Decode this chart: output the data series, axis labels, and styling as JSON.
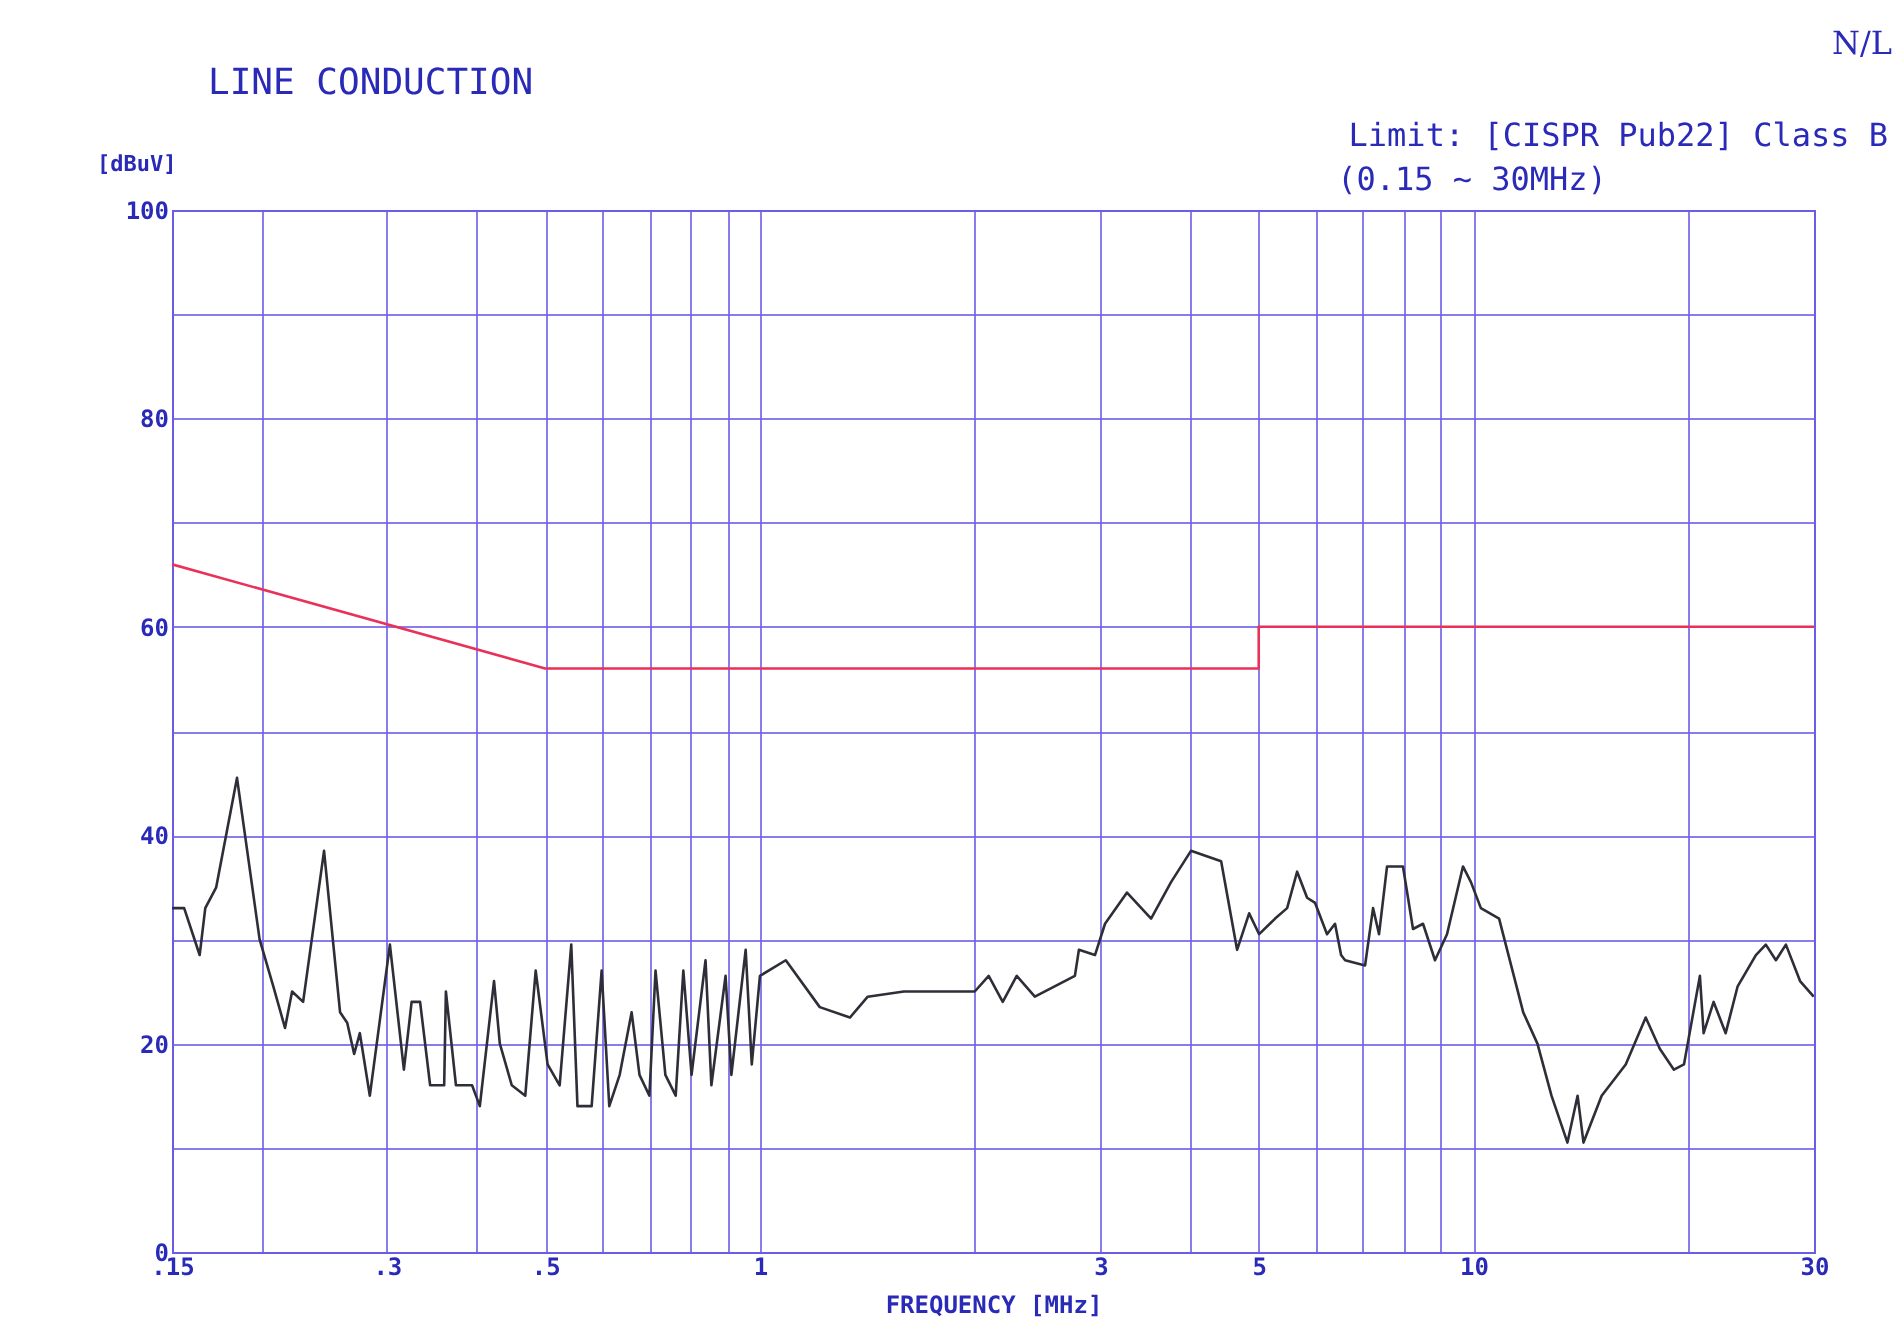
{
  "chart_data": {
    "type": "line",
    "title": "LINE CONDUCTION",
    "xlabel": "FREQUENCY [MHz]",
    "ylabel": "[dBuV]",
    "annotations": [
      "N/L",
      "Limit: [CISPR Pub22] Class B",
      "(0.15 ~ 30MHz)"
    ],
    "log": "x",
    "grid": true,
    "legend": false,
    "xlim": [
      0.15,
      30
    ],
    "ylim": [
      0,
      100
    ],
    "xticks": [
      {
        "value": 0.15,
        "label": ".15"
      },
      {
        "value": 0.2,
        "label": null
      },
      {
        "value": 0.3,
        "label": ".3"
      },
      {
        "value": 0.4,
        "label": null
      },
      {
        "value": 0.5,
        "label": ".5"
      },
      {
        "value": 0.6,
        "label": null
      },
      {
        "value": 0.7,
        "label": null
      },
      {
        "value": 0.8,
        "label": null
      },
      {
        "value": 0.9,
        "label": null
      },
      1,
      {
        "value": 2,
        "label": null
      },
      3,
      {
        "value": 4,
        "label": null
      },
      5,
      {
        "value": 6,
        "label": null
      },
      {
        "value": 7,
        "label": null
      },
      {
        "value": 8,
        "label": null
      },
      {
        "value": 9,
        "label": null
      },
      10,
      {
        "value": 20,
        "label": null
      },
      30
    ],
    "yticks": [
      0,
      {
        "value": 10,
        "label": null
      },
      20,
      {
        "value": 30,
        "label": null
      },
      40,
      {
        "value": 50,
        "label": null
      },
      60,
      {
        "value": 70,
        "label": null
      },
      80,
      {
        "value": 90,
        "label": null
      },
      100
    ],
    "series": [
      {
        "color": "#e8325a",
        "x": [
          0.15,
          0.5,
          5,
          5,
          30
        ],
        "values": [
          66,
          56,
          56,
          60,
          60
        ]
      },
      {
        "color": "#2e2e38",
        "x": [
          0.15,
          0.156,
          0.164,
          0.167,
          0.173,
          0.185,
          0.199,
          0.208,
          0.216,
          0.221,
          0.229,
          0.245,
          0.258,
          0.264,
          0.27,
          0.275,
          0.284,
          0.303,
          0.317,
          0.325,
          0.334,
          0.345,
          0.361,
          0.363,
          0.375,
          0.395,
          0.405,
          0.424,
          0.432,
          0.449,
          0.469,
          0.485,
          0.504,
          0.524,
          0.544,
          0.555,
          0.581,
          0.6,
          0.615,
          0.636,
          0.661,
          0.678,
          0.7,
          0.714,
          0.737,
          0.762,
          0.781,
          0.802,
          0.839,
          0.855,
          0.895,
          0.912,
          0.955,
          0.974,
          1.0,
          1.087,
          1.213,
          1.337,
          1.416,
          1.591,
          2.0,
          2.092,
          2.189,
          2.29,
          2.428,
          2.763,
          2.799,
          2.948,
          3.045,
          3.269,
          3.533,
          3.768,
          4.018,
          4.429,
          4.663,
          4.848,
          5.007,
          5.272,
          5.48,
          5.66,
          5.845,
          5.998,
          6.233,
          6.396,
          6.522,
          6.607,
          7.047,
          7.231,
          7.372,
          7.565,
          7.964,
          8.226,
          8.496,
          8.831,
          9.18,
          9.665,
          9.917,
          10.24,
          10.86,
          11.74,
          12.29,
          12.86,
          13.54,
          13.99,
          14.26,
          15.12,
          16.34,
          17.43,
          18.24,
          19.09,
          19.72,
          20.76,
          21.01,
          21.7,
          22.56,
          23.45,
          24.87,
          25.68,
          26.53,
          27.4,
          28.68,
          29.97
        ],
        "values": [
          33,
          33,
          28.5,
          33,
          35,
          45.5,
          30,
          25.5,
          21.5,
          25,
          24,
          38.5,
          23,
          22,
          19,
          21,
          15,
          29.5,
          17.5,
          24,
          24,
          16,
          16,
          25,
          16,
          16,
          14,
          26,
          20,
          16,
          15,
          27,
          18,
          16,
          29.5,
          14,
          14,
          27,
          14,
          17,
          23,
          17,
          15,
          27,
          17,
          15,
          27,
          17,
          28,
          16,
          26.5,
          17,
          29,
          18,
          26.5,
          28,
          23.5,
          22.5,
          24.5,
          25,
          25,
          26.5,
          24,
          26.5,
          24.5,
          26.5,
          29,
          28.5,
          31.5,
          34.5,
          32,
          35.5,
          38.5,
          37.5,
          29,
          32.5,
          30.5,
          32,
          33,
          36.5,
          34,
          33.5,
          30.5,
          31.5,
          28.5,
          28,
          27.5,
          33,
          30.5,
          37,
          37,
          31,
          31.5,
          28,
          30.5,
          37,
          35.5,
          33,
          32,
          23,
          20,
          15,
          10.5,
          15,
          10.5,
          15,
          18,
          22.5,
          19.5,
          17.5,
          18,
          26.5,
          21,
          24,
          21,
          25.5,
          28.5,
          29.5,
          28,
          29.5,
          26,
          24.5
        ]
      }
    ]
  }
}
